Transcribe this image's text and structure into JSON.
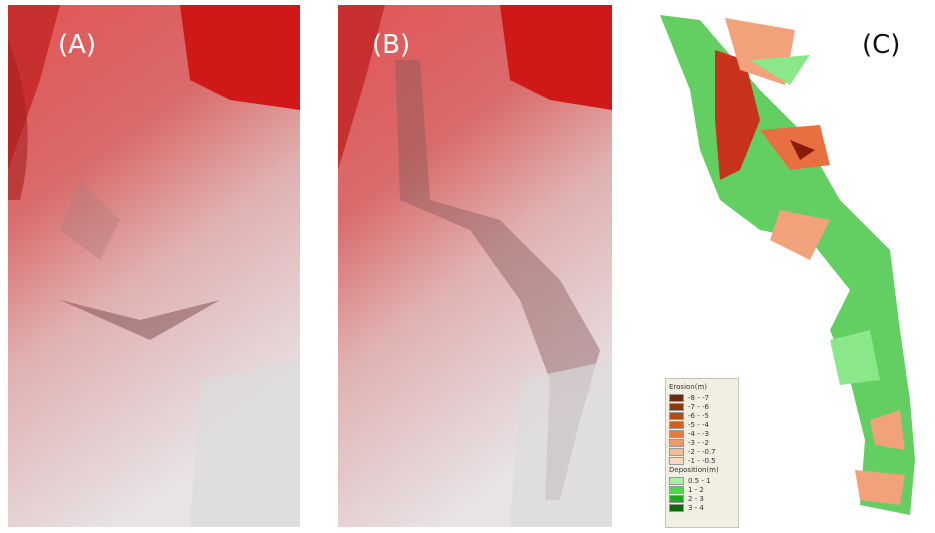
{
  "panels": [
    {
      "label": "(A)"
    },
    {
      "label": "(B)"
    },
    {
      "label": "(C)"
    }
  ],
  "legend": {
    "groups": [
      {
        "title": "Erosion(m)",
        "items": [
          {
            "label": "-8 - -7",
            "color": "#6b2a0a"
          },
          {
            "label": "-7 - -6",
            "color": "#8a3a10"
          },
          {
            "label": "-6 - -5",
            "color": "#b44a14"
          },
          {
            "label": "-5 - -4",
            "color": "#d8601c"
          },
          {
            "label": "-4 - -3",
            "color": "#e87a40"
          },
          {
            "label": "-3 - -2",
            "color": "#f09a68"
          },
          {
            "label": "-2 - -0.7",
            "color": "#f5bc98"
          },
          {
            "label": "-1 - -0.5",
            "color": "#f8d8c4"
          }
        ]
      },
      {
        "title": "Deposition(m)",
        "items": [
          {
            "label": "0.5 - 1",
            "color": "#a8f0a8"
          },
          {
            "label": "1 - 2",
            "color": "#4cd84c"
          },
          {
            "label": "2 - 3",
            "color": "#1ea81e"
          },
          {
            "label": "3 - 4",
            "color": "#0a6a0a"
          }
        ]
      }
    ]
  }
}
